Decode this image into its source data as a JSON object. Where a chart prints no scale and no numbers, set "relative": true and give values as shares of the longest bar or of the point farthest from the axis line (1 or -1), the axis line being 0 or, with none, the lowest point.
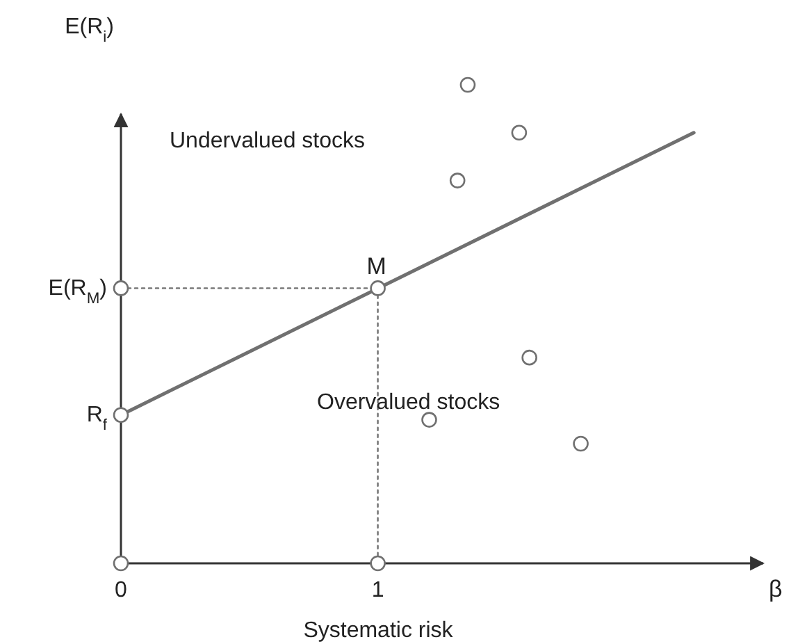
{
  "chart_data": {
    "type": "line",
    "relative": true,
    "ylabel": "E(R$_{i}$)",
    "xlabel": "β",
    "xlim": [
      0,
      2.5
    ],
    "xticks": [
      0,
      1
    ],
    "series": [
      {
        "color": "#707070",
        "x": [
          0,
          2.23
        ],
        "values": [
          0.31,
          0.9
        ],
        "marker": "none",
        "line_style": "solid"
      },
      {
        "color": "#707070",
        "x": [
          0,
          1,
          1
        ],
        "values": [
          0.575,
          0.575,
          0
        ],
        "marker": "none",
        "line_style": "dotted"
      },
      {
        "type": "scatter",
        "color": "#707070",
        "x": [
          0,
          0,
          0,
          1,
          1
        ],
        "values": [
          0,
          0.31,
          0.575,
          0,
          0.575
        ],
        "marker": "circle"
      },
      {
        "type": "scatter",
        "color": "#707070",
        "x": [
          1.35,
          1.55,
          1.31,
          1.59,
          1.2,
          1.79
        ],
        "values": [
          1,
          0.9,
          0.8,
          0.43,
          0.3,
          0.25
        ],
        "marker": "circle"
      }
    ],
    "annotations": [
      {
        "text": "M",
        "x": 1,
        "y": 0.575
      },
      "E(R$_{M}$)",
      "R$_{f}$",
      "Undervalued stocks",
      "Overvalued stocks",
      "Systematic risk"
    ]
  }
}
